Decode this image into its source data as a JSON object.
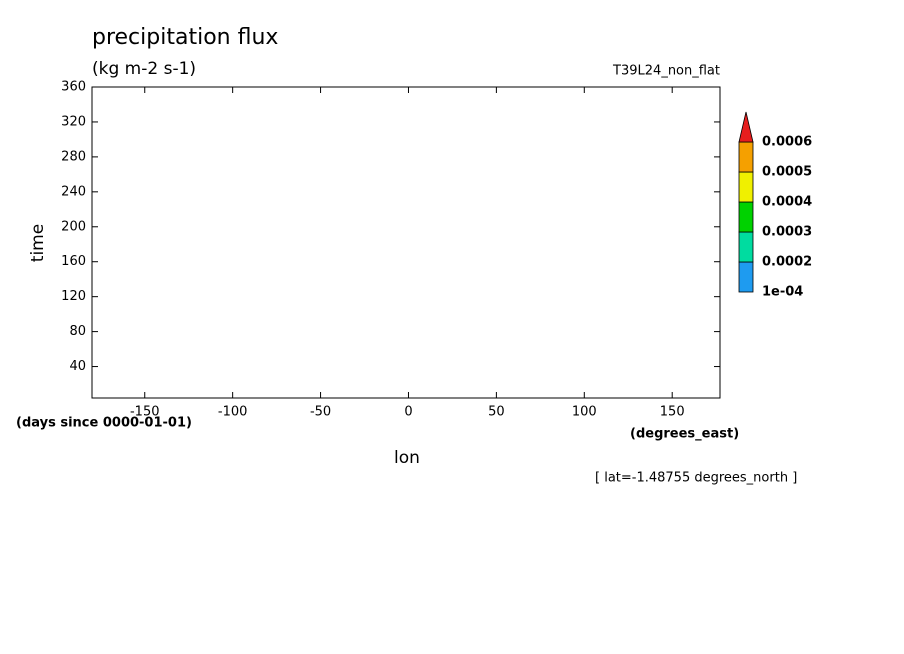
{
  "chart_data": {
    "type": "contour",
    "title": "precipitation flux",
    "subtitle": "(kg m-2 s-1)",
    "dataset": "T39L24_non_flat",
    "x_label": "lon",
    "y_label": "time",
    "y_units": "(days since 0000-01-01)",
    "x_units": "(degrees_east)",
    "annotation": "[ lat=-1.48755 degrees_north ]",
    "xlim": [
      -180,
      177.1875
    ],
    "xticks": [
      -150,
      -100,
      -50,
      0,
      50,
      100,
      150
    ],
    "ylim": [
      4,
      360
    ],
    "yticks": [
      40,
      80,
      120,
      160,
      200,
      240,
      280,
      320,
      360
    ],
    "colorbar": {
      "levels": [
        {
          "value": 0.0001,
          "label": "1e-04"
        },
        0.0002,
        0.0003,
        0.0004,
        0.0005,
        0.0006
      ],
      "colors": [
        "#1e9bf0",
        "#00dca0",
        "#00d200",
        "#f0f000",
        "#f5a000",
        "#e61e1e"
      ]
    }
  }
}
